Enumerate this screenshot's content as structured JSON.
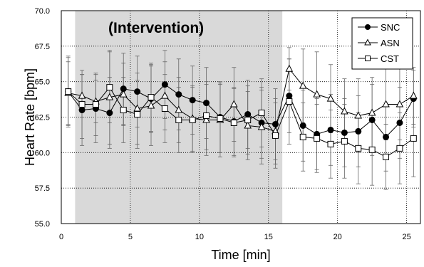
{
  "chart_data": {
    "type": "line",
    "title": "",
    "xlabel": "Time [min]",
    "ylabel": "Heart Rate [bpm]",
    "xlim": [
      0,
      26
    ],
    "ylim": [
      55.0,
      70.0
    ],
    "xticks": [
      0,
      5,
      10,
      15,
      20,
      25
    ],
    "yticks": [
      55.0,
      57.5,
      60.0,
      62.5,
      65.0,
      67.5,
      70.0
    ],
    "ytick_labels": [
      "55.0",
      "57.5",
      "60.0",
      "62.5",
      "65.0",
      "67.5",
      "70.0"
    ],
    "grid": "dotted",
    "legend": "top-right",
    "annotation": {
      "text": "(Intervention)",
      "region_x": [
        1,
        16
      ],
      "color": "#d9d9d9"
    },
    "x": [
      0.5,
      1.5,
      2.5,
      3.5,
      4.5,
      5.5,
      6.5,
      7.5,
      8.5,
      9.5,
      10.5,
      11.5,
      12.5,
      13.5,
      14.5,
      15.5,
      16.5,
      17.5,
      18.5,
      19.5,
      20.5,
      21.5,
      22.5,
      23.5,
      24.5,
      25.5
    ],
    "series": [
      {
        "name": "SNC",
        "marker": "filled-circle",
        "values": [
          64.3,
          63.0,
          63.1,
          62.8,
          64.5,
          64.3,
          63.8,
          64.8,
          64.1,
          63.7,
          63.5,
          62.5,
          62.2,
          62.7,
          62.1,
          62.0,
          64.0,
          61.9,
          61.3,
          61.6,
          61.4,
          61.5,
          62.3,
          61.1,
          62.1,
          63.8
        ],
        "errors": [
          2.4,
          2.5,
          2.4,
          2.5,
          2.5,
          2.5,
          2.4,
          2.4,
          2.5,
          2.4,
          2.5,
          2.5,
          2.4,
          2.4,
          2.5,
          2.5,
          2.6,
          2.5,
          2.5,
          2.5,
          2.4,
          2.5,
          2.5,
          2.4,
          2.5,
          2.0
        ]
      },
      {
        "name": "ASN",
        "marker": "open-triangle",
        "values": [
          64.2,
          64.0,
          63.6,
          63.9,
          64.1,
          63.1,
          63.3,
          64.0,
          63.0,
          62.4,
          62.3,
          62.3,
          63.4,
          61.9,
          61.8,
          61.5,
          65.9,
          64.7,
          64.1,
          63.8,
          62.9,
          62.6,
          62.8,
          63.4,
          63.4,
          64.0
        ],
        "errors": [
          2.2,
          1.5,
          1.5,
          3.3,
          2.2,
          2.5,
          2.8,
          2.4,
          2.3,
          2.3,
          2.5,
          2.6,
          2.6,
          2.4,
          2.6,
          2.3,
          1.5,
          2.6,
          3.0,
          2.4,
          2.3,
          2.6,
          2.5,
          2.5,
          2.5,
          2.0
        ]
      },
      {
        "name": "CST",
        "marker": "open-square",
        "values": [
          64.3,
          63.4,
          63.4,
          64.6,
          63.0,
          62.7,
          63.9,
          63.1,
          62.3,
          62.3,
          62.6,
          62.4,
          62.1,
          62.3,
          62.8,
          61.2,
          63.6,
          61.1,
          61.0,
          60.6,
          60.8,
          60.3,
          60.2,
          59.7,
          60.3,
          61.0
        ],
        "errors": [
          2.5,
          2.4,
          2.2,
          2.5,
          2.3,
          2.4,
          2.4,
          2.4,
          2.3,
          2.3,
          2.4,
          2.4,
          2.4,
          2.4,
          2.4,
          2.3,
          3.0,
          2.4,
          2.4,
          2.4,
          2.6,
          2.5,
          2.5,
          2.3,
          2.5,
          2.7
        ]
      }
    ]
  }
}
